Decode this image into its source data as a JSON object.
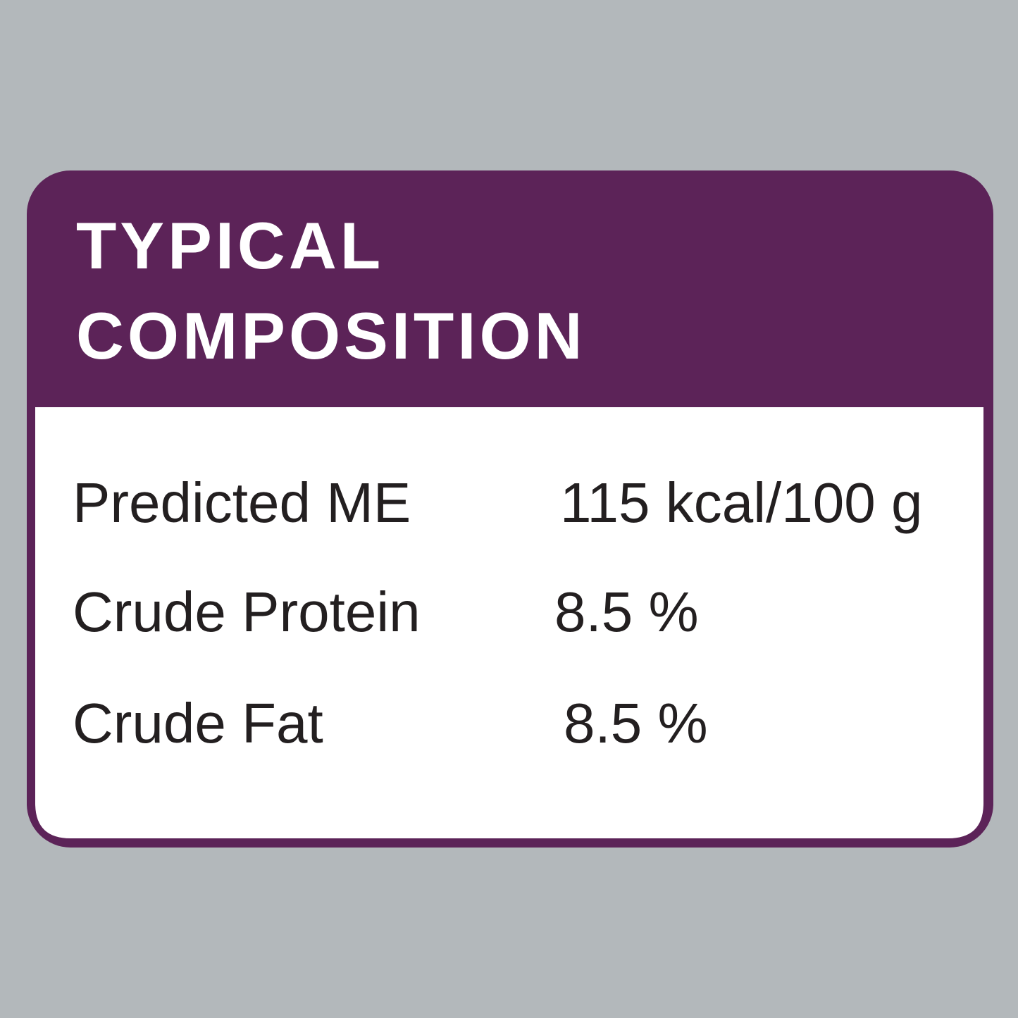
{
  "header": {
    "title_lines": [
      "TYPICAL",
      "COMPOSITION"
    ]
  },
  "table": {
    "rows": [
      [
        "Predicted ME",
        "115 kcal/100 g"
      ],
      [
        "Crude Protein",
        "8.5 %"
      ],
      [
        "Crude Fat",
        "8.5 %"
      ]
    ]
  }
}
